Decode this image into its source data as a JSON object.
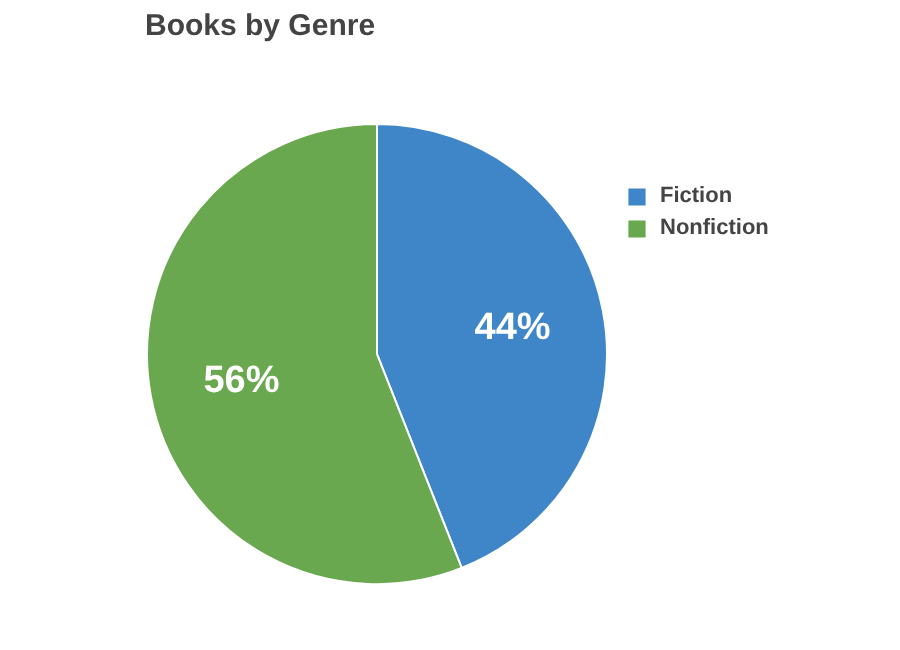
{
  "chart_data": {
    "type": "pie",
    "title": "Books by Genre",
    "categories": [
      "Fiction",
      "Nonfiction"
    ],
    "values": [
      44,
      56
    ],
    "colors": [
      "#3f86c8",
      "#69a84f"
    ],
    "value_labels": [
      "44%",
      "56%"
    ],
    "legend": "top right"
  }
}
